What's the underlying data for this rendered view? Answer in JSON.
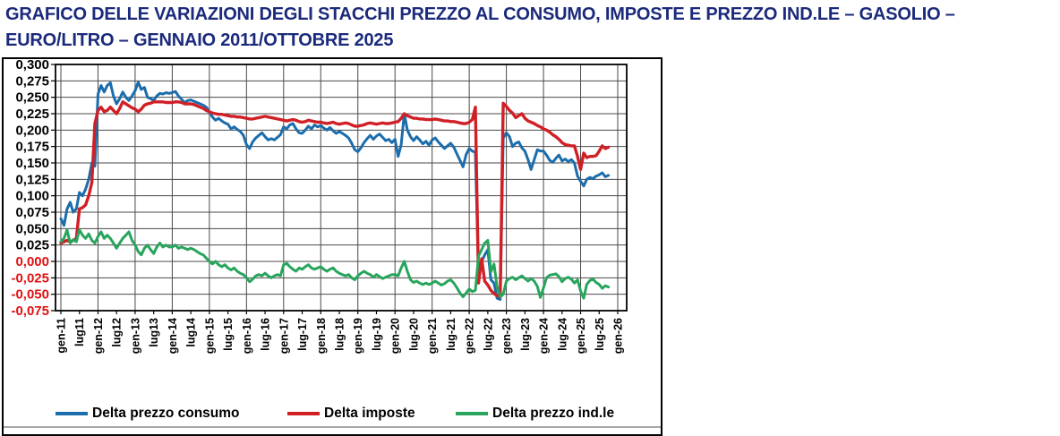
{
  "title": "GRAFICO DELLE VARIAZIONI DEGLI STACCHI PREZZO AL CONSUMO, IMPOSTE E PREZZO IND.LE – GASOLIO – EURO/LITRO – GENNAIO 2011/OTTOBRE 2025",
  "colors": {
    "title_navy": "#1b2a7b",
    "axis_negative_red": "#e01111",
    "grid": "#4a4a4a",
    "frame": "#000000",
    "series_blue": "#1b6dac",
    "series_red": "#d11f26",
    "series_green": "#28a55c"
  },
  "legend": {
    "items": [
      {
        "label": "Delta prezzo consumo",
        "color": "#1b6dac"
      },
      {
        "label": "Delta imposte",
        "color": "#d11f26"
      },
      {
        "label": "Delta prezzo ind.le",
        "color": "#28a55c"
      }
    ]
  },
  "chart_data": {
    "type": "line",
    "title": "GRAFICO DELLE VARIAZIONI DEGLI STACCHI PREZZO AL CONSUMO, IMPOSTE E PREZZO IND.LE – GASOLIO – EURO/LITRO – GENNAIO 2011/OTTOBRE 2025",
    "unit": "euro/litro",
    "x_unit": "month",
    "x_start": "gennaio 2011",
    "x_end": "ottobre 2025",
    "x_tick_labels": [
      "gen-11",
      "lug11",
      "gen-12",
      "lug12",
      "gen-13",
      "lug13",
      "gen-14",
      "lug14",
      "gen-15",
      "lug-15",
      "gen-16",
      "lug-16",
      "gen-17",
      "lug-17",
      "gen-18",
      "lug-18",
      "gen-19",
      "lug-19",
      "gen-20",
      "lug-20",
      "gen-21",
      "lug-21",
      "gen-22",
      "lug-22",
      "gen-23",
      "lug-23",
      "gen-24",
      "lug-24",
      "gen-25",
      "lug-25",
      "gen-26"
    ],
    "ylim": [
      -0.075,
      0.3
    ],
    "y_tick_step": 0.025,
    "y_tick_labels": [
      "0,300",
      "0,275",
      "0,250",
      "0,225",
      "0,200",
      "0,175",
      "0,150",
      "0,125",
      "0,100",
      "0,075",
      "0,050",
      "0,025",
      "0,000",
      "-0,025",
      "-0,050",
      "-0,075"
    ],
    "grid": "both",
    "vertical_grid_every": "12 months (each gen-XX)",
    "legend_position": "bottom",
    "series": [
      {
        "name": "Delta prezzo consumo",
        "color": "#1b6dac",
        "values": [
          0.065,
          0.055,
          0.08,
          0.09,
          0.075,
          0.08,
          0.105,
          0.1,
          0.11,
          0.125,
          0.15,
          0.145,
          0.255,
          0.268,
          0.258,
          0.268,
          0.272,
          0.252,
          0.24,
          0.248,
          0.258,
          0.25,
          0.245,
          0.252,
          0.26,
          0.273,
          0.262,
          0.265,
          0.25,
          0.248,
          0.245,
          0.252,
          0.256,
          0.255,
          0.257,
          0.256,
          0.257,
          0.259,
          0.252,
          0.247,
          0.242,
          0.245,
          0.246,
          0.244,
          0.242,
          0.24,
          0.238,
          0.235,
          0.228,
          0.22,
          0.215,
          0.218,
          0.214,
          0.211,
          0.209,
          0.202,
          0.205,
          0.201,
          0.198,
          0.192,
          0.178,
          0.172,
          0.182,
          0.188,
          0.192,
          0.196,
          0.19,
          0.185,
          0.187,
          0.185,
          0.189,
          0.193,
          0.205,
          0.202,
          0.208,
          0.21,
          0.202,
          0.196,
          0.195,
          0.2,
          0.206,
          0.202,
          0.208,
          0.205,
          0.207,
          0.203,
          0.2,
          0.204,
          0.199,
          0.195,
          0.198,
          0.195,
          0.192,
          0.188,
          0.18,
          0.17,
          0.167,
          0.173,
          0.181,
          0.187,
          0.192,
          0.186,
          0.191,
          0.194,
          0.189,
          0.184,
          0.186,
          0.181,
          0.186,
          0.16,
          0.178,
          0.225,
          0.2,
          0.19,
          0.184,
          0.19,
          0.185,
          0.179,
          0.183,
          0.177,
          0.185,
          0.188,
          0.182,
          0.177,
          0.172,
          0.176,
          0.18,
          0.174,
          0.164,
          0.154,
          0.144,
          0.163,
          0.172,
          0.168,
          0.166,
          -0.02,
          0.0,
          0.01,
          0.018,
          -0.028,
          -0.033,
          -0.056,
          -0.058,
          0.188,
          0.196,
          0.19,
          0.175,
          0.18,
          0.182,
          0.173,
          0.168,
          0.155,
          0.14,
          0.155,
          0.17,
          0.168,
          0.168,
          0.162,
          0.154,
          0.151,
          0.157,
          0.162,
          0.153,
          0.156,
          0.152,
          0.155,
          0.15,
          0.13,
          0.122,
          0.115,
          0.125,
          0.128,
          0.126,
          0.13,
          0.132,
          0.135,
          0.129,
          0.131
        ]
      },
      {
        "name": "Delta imposte",
        "color": "#d11f26",
        "values": [
          0.028,
          0.03,
          0.032,
          0.03,
          0.032,
          0.035,
          0.08,
          0.082,
          0.086,
          0.1,
          0.12,
          0.21,
          0.23,
          0.235,
          0.228,
          0.23,
          0.235,
          0.23,
          0.225,
          0.233,
          0.243,
          0.24,
          0.237,
          0.234,
          0.232,
          0.228,
          0.232,
          0.238,
          0.24,
          0.241,
          0.243,
          0.243,
          0.243,
          0.243,
          0.242,
          0.242,
          0.242,
          0.243,
          0.243,
          0.242,
          0.24,
          0.24,
          0.24,
          0.239,
          0.237,
          0.235,
          0.233,
          0.23,
          0.228,
          0.226,
          0.225,
          0.224,
          0.224,
          0.223,
          0.222,
          0.221,
          0.221,
          0.22,
          0.22,
          0.219,
          0.218,
          0.217,
          0.217,
          0.218,
          0.219,
          0.22,
          0.221,
          0.22,
          0.219,
          0.218,
          0.217,
          0.216,
          0.215,
          0.214,
          0.215,
          0.216,
          0.215,
          0.213,
          0.212,
          0.213,
          0.215,
          0.214,
          0.213,
          0.212,
          0.212,
          0.211,
          0.21,
          0.211,
          0.212,
          0.21,
          0.209,
          0.21,
          0.211,
          0.21,
          0.208,
          0.206,
          0.206,
          0.207,
          0.208,
          0.21,
          0.211,
          0.21,
          0.209,
          0.21,
          0.211,
          0.21,
          0.21,
          0.211,
          0.212,
          0.213,
          0.218,
          0.225,
          0.222,
          0.22,
          0.218,
          0.218,
          0.217,
          0.217,
          0.216,
          0.216,
          0.216,
          0.217,
          0.216,
          0.215,
          0.214,
          0.214,
          0.213,
          0.213,
          0.212,
          0.211,
          0.21,
          0.21,
          0.212,
          0.216,
          0.235,
          -0.033,
          0.004,
          -0.03,
          -0.036,
          -0.044,
          -0.049,
          -0.052,
          -0.054,
          0.241,
          0.236,
          0.23,
          0.226,
          0.219,
          0.222,
          0.225,
          0.218,
          0.214,
          0.212,
          0.21,
          0.207,
          0.205,
          0.202,
          0.2,
          0.197,
          0.193,
          0.19,
          0.186,
          0.181,
          0.178,
          0.177,
          0.176,
          0.176,
          0.16,
          0.14,
          0.165,
          0.158,
          0.16,
          0.16,
          0.161,
          0.168,
          0.176,
          0.172,
          0.174
        ]
      },
      {
        "name": "Delta prezzo ind.le",
        "color": "#28a55c",
        "values": [
          0.03,
          0.035,
          0.048,
          0.028,
          0.033,
          0.03,
          0.048,
          0.04,
          0.035,
          0.042,
          0.032,
          0.028,
          0.038,
          0.045,
          0.035,
          0.04,
          0.035,
          0.028,
          0.02,
          0.028,
          0.035,
          0.04,
          0.045,
          0.032,
          0.025,
          0.015,
          0.01,
          0.02,
          0.025,
          0.018,
          0.012,
          0.022,
          0.028,
          0.022,
          0.025,
          0.022,
          0.022,
          0.025,
          0.02,
          0.022,
          0.02,
          0.018,
          0.02,
          0.018,
          0.015,
          0.012,
          0.01,
          0.005,
          0.0,
          -0.004,
          0.0,
          -0.005,
          -0.008,
          -0.005,
          -0.01,
          -0.013,
          -0.01,
          -0.015,
          -0.018,
          -0.02,
          -0.025,
          -0.031,
          -0.027,
          -0.022,
          -0.02,
          -0.022,
          -0.018,
          -0.022,
          -0.025,
          -0.022,
          -0.02,
          -0.022,
          -0.005,
          -0.003,
          -0.008,
          -0.012,
          -0.015,
          -0.01,
          -0.012,
          -0.008,
          -0.005,
          -0.01,
          -0.012,
          -0.01,
          -0.008,
          -0.012,
          -0.015,
          -0.012,
          -0.01,
          -0.015,
          -0.018,
          -0.02,
          -0.022,
          -0.02,
          -0.025,
          -0.028,
          -0.022,
          -0.018,
          -0.015,
          -0.018,
          -0.02,
          -0.024,
          -0.02,
          -0.023,
          -0.026,
          -0.024,
          -0.022,
          -0.02,
          -0.02,
          -0.022,
          -0.01,
          0.0,
          -0.015,
          -0.028,
          -0.032,
          -0.03,
          -0.033,
          -0.035,
          -0.033,
          -0.035,
          -0.033,
          -0.03,
          -0.033,
          -0.036,
          -0.034,
          -0.03,
          -0.028,
          -0.033,
          -0.04,
          -0.048,
          -0.054,
          -0.048,
          -0.042,
          -0.046,
          -0.044,
          0.008,
          0.018,
          0.028,
          0.032,
          -0.016,
          -0.004,
          -0.038,
          -0.054,
          -0.05,
          -0.03,
          -0.026,
          -0.024,
          -0.028,
          -0.025,
          -0.022,
          -0.026,
          -0.03,
          -0.026,
          -0.03,
          -0.038,
          -0.055,
          -0.04,
          -0.025,
          -0.021,
          -0.02,
          -0.019,
          -0.023,
          -0.031,
          -0.026,
          -0.024,
          -0.027,
          -0.033,
          -0.028,
          -0.045,
          -0.056,
          -0.035,
          -0.029,
          -0.027,
          -0.032,
          -0.035,
          -0.041,
          -0.037,
          -0.039
        ]
      }
    ]
  }
}
